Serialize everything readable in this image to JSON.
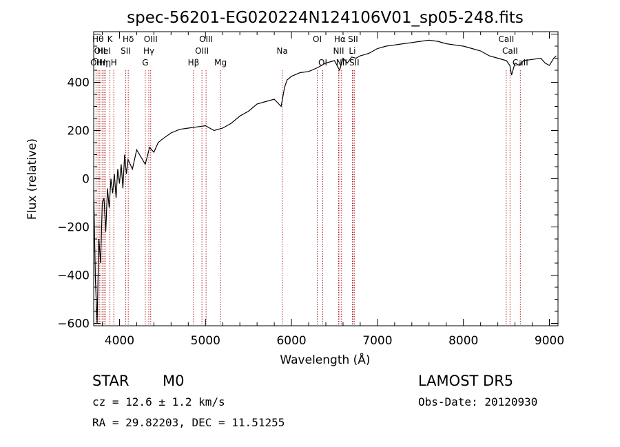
{
  "chart_data": {
    "type": "line",
    "title": "spec-56201-EG020224N124106V01_sp05-248.fits",
    "xlabel": "Wavelength (Å)",
    "ylabel": "Flux (relative)",
    "xlim": [
      3700,
      9100
    ],
    "ylim": [
      -610,
      610
    ],
    "x_ticks": [
      4000,
      5000,
      6000,
      7000,
      8000,
      9000
    ],
    "y_ticks": [
      -600,
      -400,
      -200,
      0,
      200,
      400
    ],
    "grid": false,
    "line_color": "#000000",
    "marker_color": "#b22222",
    "series": [
      {
        "x": [
          3700,
          3720,
          3740,
          3760,
          3780,
          3800,
          3820,
          3840,
          3860,
          3880,
          3900,
          3920,
          3940,
          3960,
          3980,
          4000,
          4020,
          4040,
          4060,
          4080,
          4100,
          4150,
          4200,
          4250,
          4300,
          4350,
          4400,
          4450,
          4500,
          4600,
          4700,
          4800,
          4900,
          5000,
          5100,
          5200,
          5300,
          5400,
          5500,
          5600,
          5700,
          5800,
          5880,
          5900,
          5920,
          5950,
          6000,
          6100,
          6200,
          6300,
          6400,
          6500,
          6560,
          6600,
          6650,
          6700,
          6750,
          6800,
          6850,
          6900,
          7000,
          7100,
          7200,
          7300,
          7400,
          7500,
          7600,
          7700,
          7800,
          7900,
          8000,
          8100,
          8200,
          8300,
          8400,
          8500,
          8540,
          8560,
          8600,
          8650,
          8700,
          8800,
          8900,
          8950,
          9000,
          9050,
          9080
        ],
        "values": [
          -50,
          -420,
          -600,
          -250,
          -350,
          -100,
          -80,
          -220,
          -40,
          -120,
          0,
          -60,
          20,
          -80,
          40,
          -20,
          60,
          -40,
          100,
          20,
          80,
          40,
          120,
          90,
          60,
          130,
          110,
          150,
          165,
          190,
          205,
          210,
          215,
          220,
          200,
          210,
          230,
          260,
          280,
          310,
          320,
          330,
          300,
          340,
          380,
          410,
          425,
          440,
          445,
          460,
          480,
          490,
          450,
          500,
          480,
          505,
          500,
          510,
          515,
          520,
          540,
          550,
          555,
          560,
          565,
          570,
          575,
          570,
          560,
          555,
          550,
          540,
          530,
          510,
          500,
          490,
          470,
          430,
          480,
          470,
          490,
          495,
          500,
          480,
          470,
          500,
          510
        ]
      }
    ],
    "line_markers": [
      {
        "x": 3727,
        "row": 2,
        "label": "OII"
      },
      {
        "x": 3750,
        "row": 0,
        "label": "Hθ"
      },
      {
        "x": 3771,
        "row": 1,
        "label": "OII"
      },
      {
        "x": 3798,
        "row": 2,
        "label": "Hη"
      },
      {
        "x": 3820,
        "row": 1,
        "label": "HeI"
      },
      {
        "x": 3835,
        "row": 2,
        "label": "Hη"
      },
      {
        "x": 3889,
        "row": 0,
        "label": "K"
      },
      {
        "x": 3934,
        "row": 2,
        "label": "H"
      },
      {
        "x": 4072,
        "row": 1,
        "label": "SII"
      },
      {
        "x": 4102,
        "row": 0,
        "label": "Hδ"
      },
      {
        "x": 4300,
        "row": 2,
        "label": "G"
      },
      {
        "x": 4341,
        "row": 1,
        "label": "Hγ"
      },
      {
        "x": 4363,
        "row": 0,
        "label": "OIII"
      },
      {
        "x": 4861,
        "row": 2,
        "label": "Hβ"
      },
      {
        "x": 4959,
        "row": 1,
        "label": "OIII"
      },
      {
        "x": 5007,
        "row": 0,
        "label": "OIII"
      },
      {
        "x": 5175,
        "row": 2,
        "label": "Mg"
      },
      {
        "x": 5893,
        "row": 1,
        "label": "Na"
      },
      {
        "x": 6300,
        "row": 0,
        "label": "OI"
      },
      {
        "x": 6364,
        "row": 2,
        "label": "OI"
      },
      {
        "x": 6548,
        "row": 1,
        "label": "NII"
      },
      {
        "x": 6563,
        "row": 0,
        "label": "Hα"
      },
      {
        "x": 6583,
        "row": 2,
        "label": "NII"
      },
      {
        "x": 6708,
        "row": 1,
        "label": "Li"
      },
      {
        "x": 6716,
        "row": 0,
        "label": "SII"
      },
      {
        "x": 6731,
        "row": 2,
        "label": "SII"
      },
      {
        "x": 8498,
        "row": 0,
        "label": "CaII"
      },
      {
        "x": 8542,
        "row": 1,
        "label": "CaII"
      },
      {
        "x": 8662,
        "row": 2,
        "label": "CaII"
      }
    ]
  },
  "info": {
    "class_label": "STAR",
    "subclass_label": "M0",
    "survey": "LAMOST DR5",
    "cz": "cz = 12.6 ± 1.2 km/s",
    "obs_date": "Obs-Date: 20120930",
    "radec": "RA =  29.82203, DEC =  11.51255"
  }
}
